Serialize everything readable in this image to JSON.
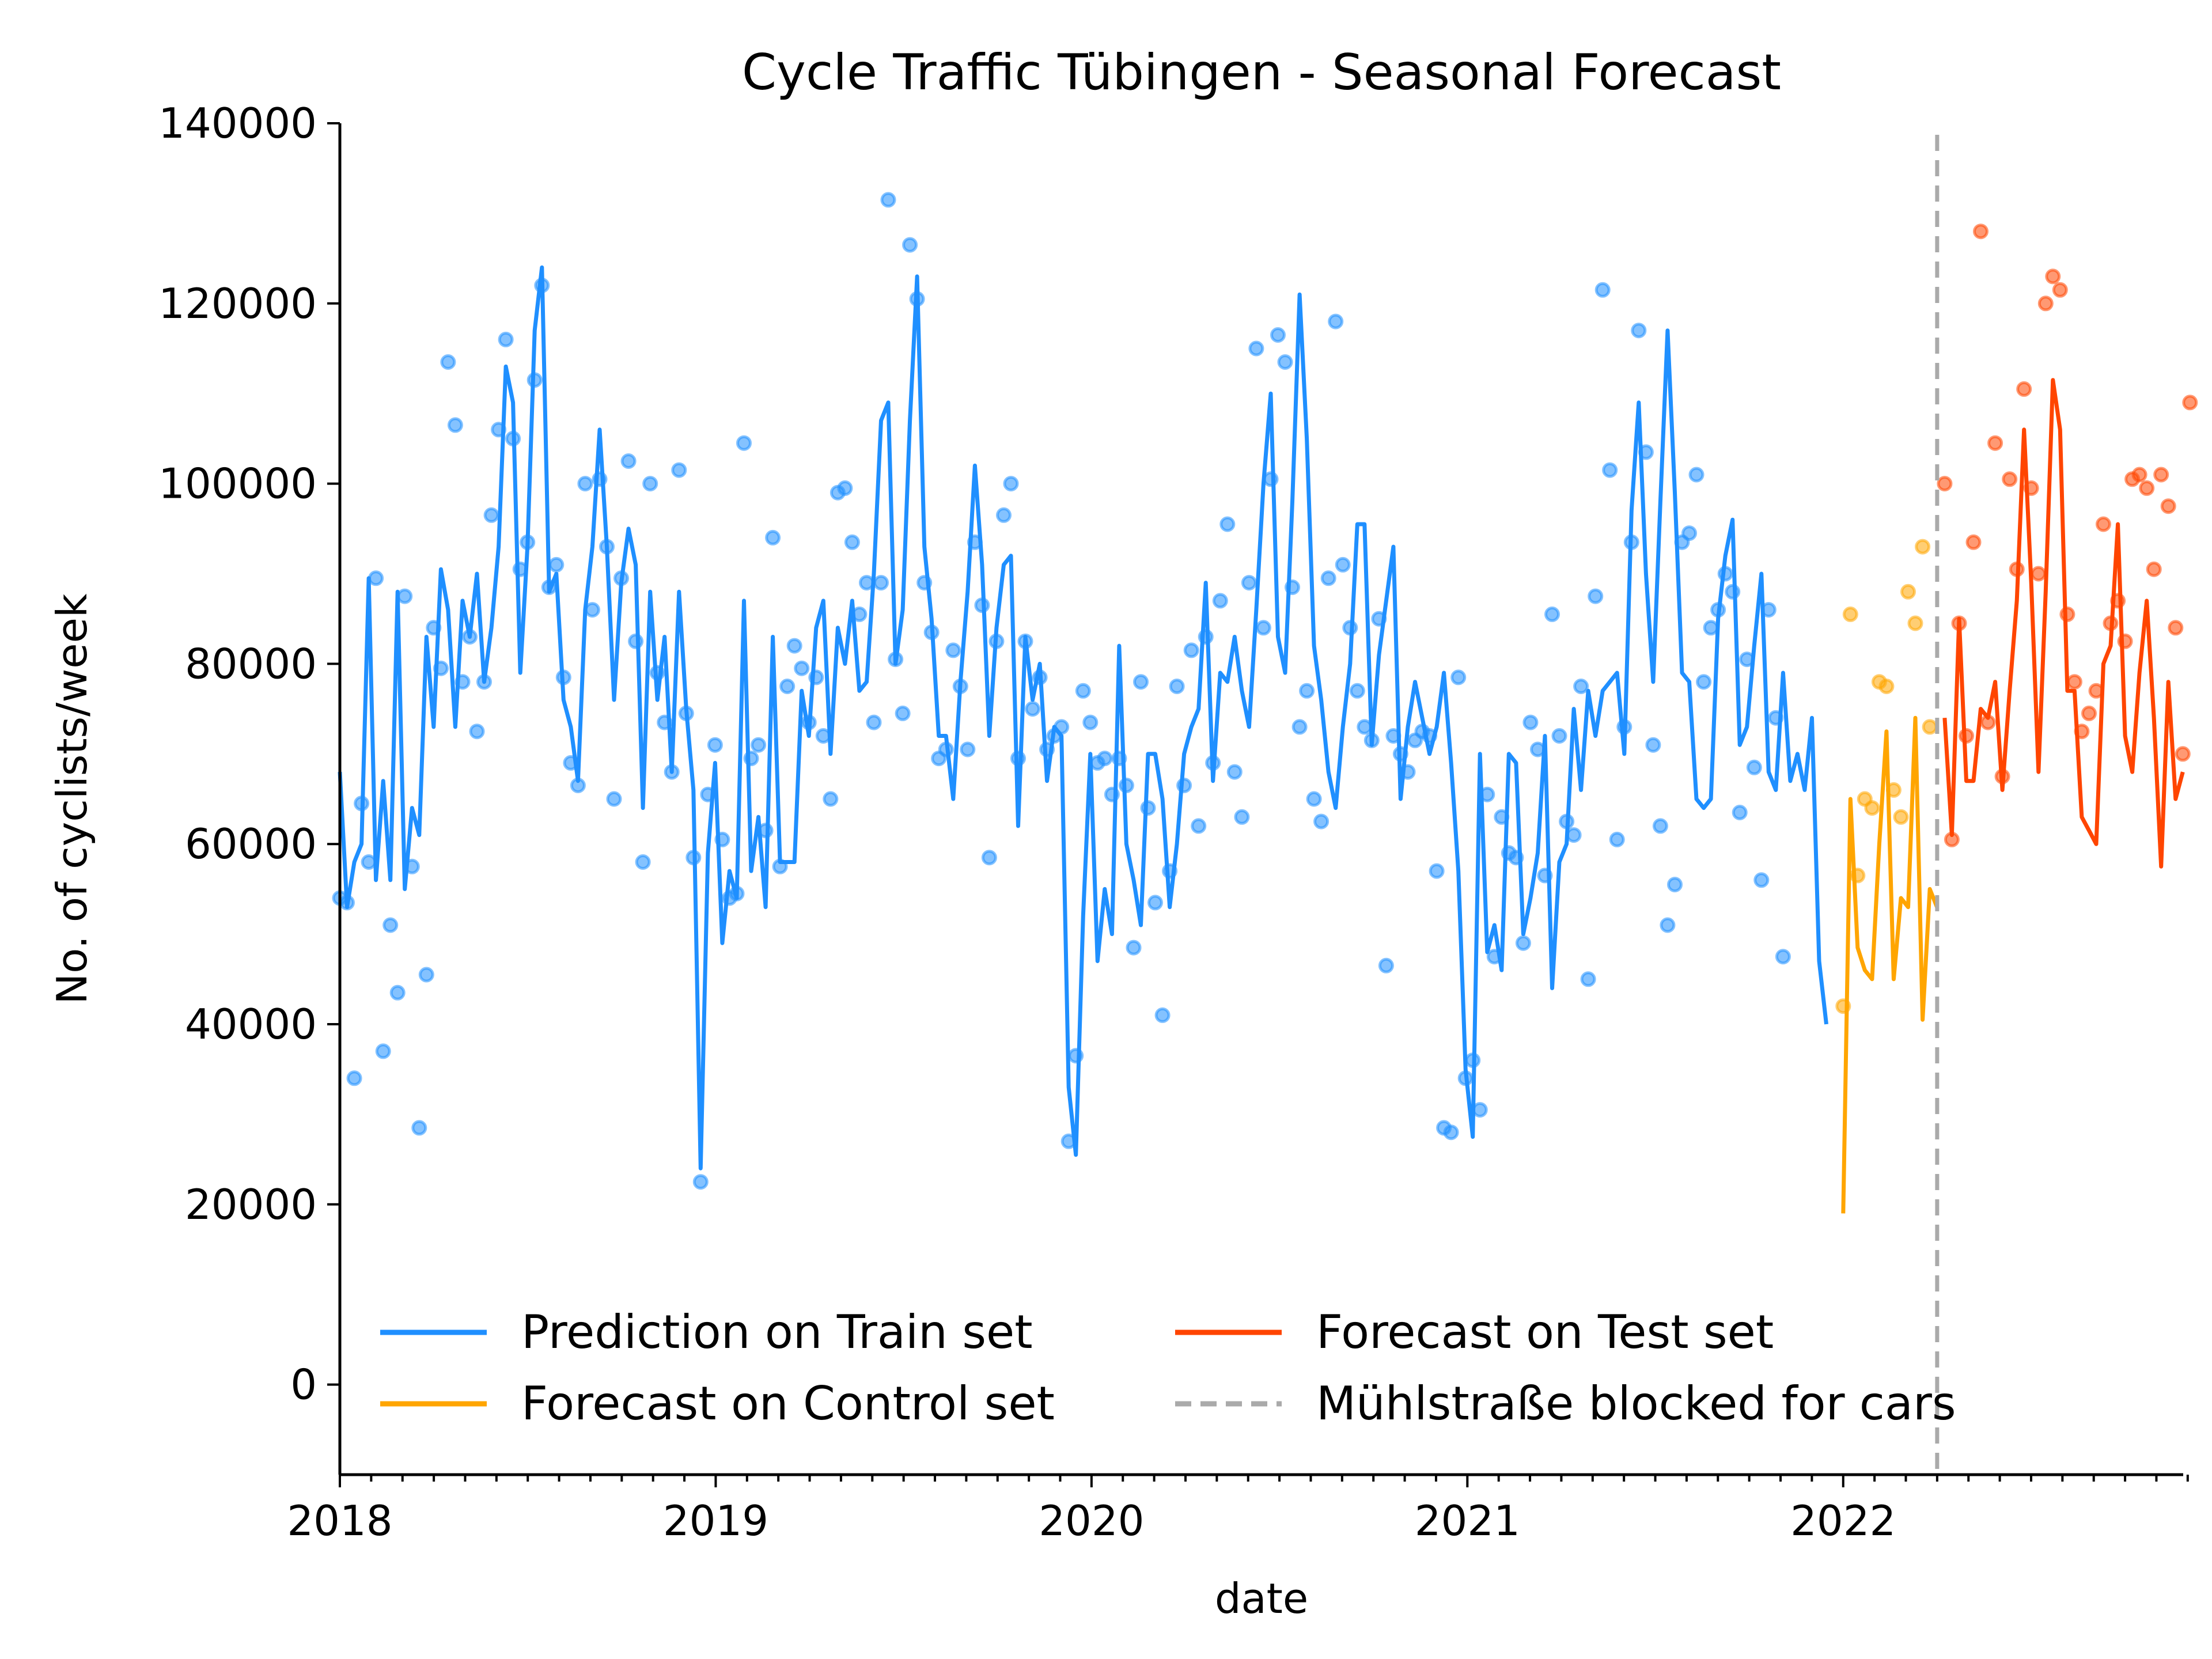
{
  "chart_data": {
    "type": "line",
    "title": "Cycle Traffic Tübingen - Seasonal Forecast",
    "xlabel": "date",
    "ylabel": "No. of cyclists/week",
    "xlim": [
      2018.0,
      2022.92
    ],
    "ylim": [
      -10000,
      140000
    ],
    "x_ticks": [
      2018,
      2019,
      2020,
      2021,
      2022
    ],
    "x_tick_labels": [
      "2018",
      "2019",
      "2020",
      "2021",
      "2022"
    ],
    "y_ticks": [
      0,
      20000,
      40000,
      60000,
      80000,
      100000,
      120000,
      140000
    ],
    "y_tick_labels": [
      "0",
      "20000",
      "40000",
      "60000",
      "80000",
      "100000",
      "120000",
      "140000"
    ],
    "grid": false,
    "legend_position": "lower-left",
    "colors": {
      "train": "#1f8fff",
      "control": "#ffa500",
      "test": "#ff4500",
      "blocked": "#aaaaaa"
    },
    "vline": {
      "x": 2022.25,
      "label": "Mühlstraße blocked for cars"
    },
    "series": [
      {
        "name": "Prediction on Train set",
        "x_start": 2018.0,
        "x_step": 0.0192,
        "values": [
          68000,
          53000,
          58000,
          60000,
          89500,
          56000,
          67000,
          56000,
          88000,
          55000,
          64000,
          61000,
          83000,
          73000,
          90500,
          86000,
          73000,
          87000,
          83000,
          90000,
          78000,
          84000,
          93000,
          113000,
          109000,
          79000,
          93000,
          117000,
          124000,
          88000,
          90000,
          76000,
          73000,
          67000,
          86000,
          93000,
          106000,
          93000,
          76000,
          89000,
          95000,
          91000,
          64000,
          88000,
          76000,
          83000,
          68000,
          88000,
          75000,
          66000,
          24000,
          59000,
          69000,
          49000,
          57000,
          54000,
          87000,
          57000,
          63000,
          53000,
          83000,
          58000,
          58000,
          58000,
          77000,
          72000,
          84000,
          87000,
          70000,
          84000,
          80000,
          87000,
          77000,
          78000,
          90000,
          107000,
          109000,
          80000,
          86000,
          107000,
          123000,
          93000,
          85000,
          72000,
          72000,
          65000,
          78000,
          88000,
          102000,
          91000,
          72000,
          84000,
          91000,
          92000,
          62000,
          83000,
          76000,
          80000,
          67000,
          73000,
          72000,
          33000,
          25500,
          52000,
          70000,
          47000,
          55000,
          50000,
          82000,
          60000,
          56000,
          51000,
          70000,
          70000,
          65000,
          53000,
          60000,
          70000,
          73000,
          75000,
          89000,
          67000,
          79000,
          78000,
          83000,
          77000,
          73000,
          86000,
          100000,
          110000,
          83000,
          79000,
          98000,
          121000,
          105000,
          82000,
          76000,
          68000,
          64000,
          73000,
          80000,
          95500,
          95500,
          71000,
          81000,
          87000,
          93000,
          65000,
          73000,
          78000,
          74000,
          70000,
          73000,
          79000,
          69000,
          57000,
          35000,
          27500,
          70000,
          48000,
          51000,
          46000,
          70000,
          69000,
          50000,
          54000,
          59000,
          72000,
          44000,
          58000,
          60000,
          75000,
          66000,
          77000,
          72000,
          77000,
          78000,
          79000,
          70000,
          97000,
          109000,
          90000,
          78000,
          98000,
          117000,
          99000,
          79000,
          78000,
          65000,
          64000,
          65000,
          85000,
          92000,
          96000,
          71000,
          73000,
          82000,
          90000,
          68000,
          66000,
          79000,
          67000,
          70000,
          66000,
          74000,
          47000,
          40000
        ]
      },
      {
        "name": "Forecast on Control set",
        "x_start": 2022.0,
        "x_step": 0.0192,
        "values": [
          19000,
          65000,
          48500,
          46000,
          45000,
          60000,
          72500,
          45000,
          54000,
          53000,
          74000,
          40500,
          55000,
          53000
        ]
      },
      {
        "name": "Forecast on Test set",
        "x_start": 2022.27,
        "x_step": 0.0192,
        "values": [
          74000,
          61000,
          85000,
          67000,
          67000,
          75000,
          74000,
          78000,
          66000,
          77000,
          87000,
          106000,
          89000,
          68000,
          88000,
          111500,
          106000,
          77000,
          77000,
          63000,
          61500,
          60000,
          80000,
          82000,
          95500,
          72000,
          68000,
          79000,
          87000,
          74000,
          57500,
          78000,
          65000,
          68000
        ]
      }
    ],
    "observations": [
      {
        "name": "Train observations",
        "color": "#1f8fff",
        "x_start": 2018.0,
        "x_step": 0.0192,
        "values": [
          54000,
          53500,
          34000,
          64500,
          58000,
          89500,
          37000,
          51000,
          43500,
          87500,
          57500,
          28500,
          45500,
          84000,
          79500,
          113500,
          106500,
          78000,
          83000,
          72500,
          78000,
          96500,
          106000,
          116000,
          105000,
          90500,
          93500,
          111500,
          122000,
          88500,
          91000,
          78500,
          69000,
          66500,
          100000,
          86000,
          100500,
          93000,
          65000,
          89500,
          102500,
          82500,
          58000,
          100000,
          79000,
          73500,
          68000,
          101500,
          74500,
          58500,
          22500,
          65500,
          71000,
          60500,
          54000,
          54500,
          104500,
          69500,
          71000,
          61500,
          94000,
          57500,
          77500,
          82000,
          79500,
          73500,
          78500,
          72000,
          65000,
          99000,
          99500,
          93500,
          85500,
          89000,
          73500,
          89000,
          131500,
          80500,
          74500,
          126500,
          120500,
          89000,
          83500,
          69500,
          70500,
          81500,
          77500,
          70500,
          93500,
          86500,
          58500,
          82500,
          96500,
          100000,
          69500,
          82500,
          75000,
          78500,
          70500,
          72000,
          73000,
          27000,
          36500,
          77000,
          73500,
          69000,
          69500,
          65500,
          69500,
          66500,
          48500,
          78000,
          64000,
          53500,
          41000,
          57000,
          77500,
          66500,
          81500,
          62000,
          83000,
          69000,
          87000,
          95500,
          68000,
          63000,
          89000,
          115000,
          84000,
          100500,
          116500,
          113500,
          88500,
          73000,
          77000,
          65000,
          62500,
          89500,
          118000,
          91000,
          84000,
          77000,
          73000,
          71500,
          85000,
          46500,
          72000,
          70000,
          68000,
          71500,
          72500,
          72000,
          57000,
          28500,
          28000,
          78500,
          34000,
          36000,
          30500,
          65500,
          47500,
          63000,
          59000,
          58500,
          49000,
          73500,
          70500,
          56500,
          85500,
          72000,
          62500,
          61000,
          77500,
          45000,
          87500,
          121500,
          101500,
          60500,
          73000,
          93500,
          117000,
          103500,
          71000,
          62000,
          51000,
          55500,
          93500,
          94500,
          101000,
          78000,
          84000,
          86000,
          90000,
          88000,
          63500,
          80500,
          68500,
          56000,
          86000,
          74000,
          47500
        ]
      },
      {
        "name": "Control observations",
        "color": "#ffa500",
        "x_start": 2022.0,
        "x_step": 0.0192,
        "values": [
          42000,
          85500,
          56500,
          65000,
          64000,
          78000,
          77500,
          66000,
          63000,
          88000,
          84500,
          93000,
          73000
        ]
      },
      {
        "name": "Test observations",
        "color": "#ff4500",
        "x_start": 2022.27,
        "x_step": 0.0192,
        "values": [
          100000,
          60500,
          84500,
          72000,
          93500,
          128000,
          73500,
          104500,
          67500,
          100500,
          90500,
          110500,
          99500,
          90000,
          120000,
          123000,
          121500,
          85500,
          78000,
          72500,
          74500,
          77000,
          95500,
          84500,
          87000,
          82500,
          100500,
          101000,
          99500,
          90500,
          101000,
          97500,
          84000,
          70000,
          109000
        ]
      }
    ]
  }
}
